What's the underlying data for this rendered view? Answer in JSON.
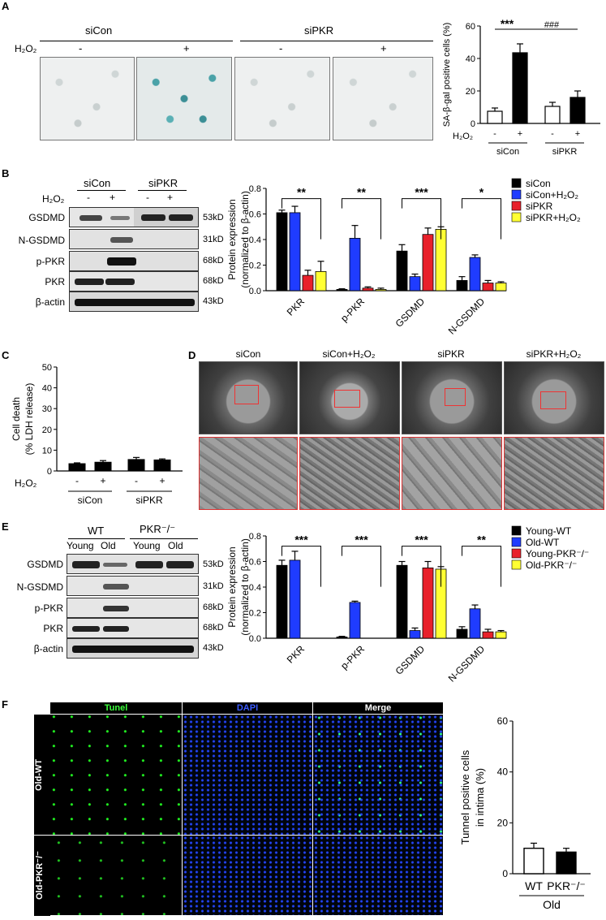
{
  "panels": {
    "A": "A",
    "B": "B",
    "C": "C",
    "D": "D",
    "E": "E",
    "F": "F"
  },
  "panelA": {
    "groups": [
      "siCon",
      "siPKR"
    ],
    "treatment_label": "H₂O₂",
    "signs": [
      "-",
      "+",
      "-",
      "+"
    ],
    "sig_left": "***",
    "sig_right": "###"
  },
  "blotB": {
    "groups": [
      "siCon",
      "siPKR"
    ],
    "treatment_label": "H₂O₂",
    "signs": [
      "-",
      "+",
      "-",
      "+"
    ],
    "rows": [
      {
        "label": "GSDMD",
        "kd": "53kD"
      },
      {
        "label": "N-GSDMD",
        "kd": "31kD"
      },
      {
        "label": "p-PKR",
        "kd": "68kD"
      },
      {
        "label": "PKR",
        "kd": "68kD"
      },
      {
        "label": "β-actin",
        "kd": "43kD"
      }
    ]
  },
  "blotE": {
    "groups": [
      "WT",
      "PKR⁻/⁻"
    ],
    "sub_labels": [
      "Young",
      "Old",
      "Young",
      "Old"
    ],
    "rows": [
      {
        "label": "GSDMD",
        "kd": "53kD"
      },
      {
        "label": "N-GSDMD",
        "kd": "31kD"
      },
      {
        "label": "p-PKR",
        "kd": "68kD"
      },
      {
        "label": "PKR",
        "kd": "68kD"
      },
      {
        "label": "β-actin",
        "kd": "43kD"
      }
    ]
  },
  "panelD": {
    "labels": [
      "siCon",
      "siCon+H₂O₂",
      "siPKR",
      "siPKR+H₂O₂"
    ]
  },
  "panelF": {
    "columns": [
      "Tunel",
      "DAPI",
      "Merge"
    ],
    "rows": [
      "Old-WT",
      "Old-PKR⁻/⁻"
    ]
  },
  "chart_data": [
    {
      "id": "A",
      "type": "bar",
      "ylabel": "SA-β-gal positive cells (%)",
      "ylim": [
        0,
        60
      ],
      "yticks": [
        "0",
        "20",
        "40",
        "60"
      ],
      "treatment_label": "H₂O₂",
      "signs": [
        "-",
        "+",
        "-",
        "+"
      ],
      "groups": [
        "siCon",
        "siPKR"
      ],
      "values": [
        7.5,
        43.5,
        10.5,
        16
      ],
      "errors": [
        2,
        5.5,
        2.5,
        4
      ],
      "fills": [
        "#ffffff",
        "#000000",
        "#ffffff",
        "#000000"
      ],
      "sig": [
        "***",
        "###"
      ]
    },
    {
      "id": "B",
      "type": "bar",
      "ylabel": "Protein expression (normalized to β-actin)",
      "ylim": [
        0,
        0.8
      ],
      "yticks": [
        "0.0",
        "0.2",
        "0.4",
        "0.6",
        "0.8"
      ],
      "categories": [
        "PKR",
        "p-PKR",
        "GSDMD",
        "N-GSDMD"
      ],
      "series": [
        {
          "name": "siCon",
          "color": "#000000",
          "values": [
            0.61,
            0.01,
            0.31,
            0.08
          ],
          "errors": [
            0.02,
            0.005,
            0.05,
            0.03
          ]
        },
        {
          "name": "siCon+H₂O₂",
          "color": "#1f3cff",
          "values": [
            0.61,
            0.41,
            0.11,
            0.26
          ],
          "errors": [
            0.05,
            0.1,
            0.02,
            0.02
          ]
        },
        {
          "name": "siPKR",
          "color": "#e8202a",
          "values": [
            0.12,
            0.02,
            0.44,
            0.06
          ],
          "errors": [
            0.04,
            0.01,
            0.05,
            0.02
          ]
        },
        {
          "name": "siPKR+H₂O₂",
          "color": "#ffff33",
          "values": [
            0.15,
            0.01,
            0.48,
            0.06
          ],
          "errors": [
            0.08,
            0.01,
            0.02,
            0.01
          ]
        }
      ],
      "sig": [
        "**",
        "**",
        "***",
        "*"
      ]
    },
    {
      "id": "C",
      "type": "bar",
      "ylabel": "Cell death (% LDH release)",
      "ylim": [
        0,
        50
      ],
      "yticks": [
        "0",
        "10",
        "20",
        "30",
        "40",
        "50"
      ],
      "treatment_label": "H₂O₂",
      "signs": [
        "-",
        "+",
        "-",
        "+"
      ],
      "groups": [
        "siCon",
        "siPKR"
      ],
      "values": [
        3.5,
        4.2,
        5.5,
        5.3
      ],
      "errors": [
        0.4,
        0.8,
        1.0,
        0.5
      ],
      "fills": [
        "#000000",
        "#000000",
        "#000000",
        "#000000"
      ]
    },
    {
      "id": "E",
      "type": "bar",
      "ylabel": "Protein expression (normalized to β-actin)",
      "ylim": [
        0,
        0.8
      ],
      "yticks": [
        "0.0",
        "0.2",
        "0.4",
        "0.6",
        "0.8"
      ],
      "categories": [
        "PKR",
        "p-PKR",
        "GSDMD",
        "N-GSDMD"
      ],
      "series": [
        {
          "name": "Young-WT",
          "color": "#000000",
          "values": [
            0.57,
            0.01,
            0.57,
            0.07
          ],
          "errors": [
            0.04,
            0.005,
            0.03,
            0.02
          ]
        },
        {
          "name": "Old-WT",
          "color": "#1f3cff",
          "values": [
            0.61,
            0.28,
            0.06,
            0.23
          ],
          "errors": [
            0.07,
            0.01,
            0.02,
            0.03
          ]
        },
        {
          "name": "Young-PKR⁻/⁻",
          "color": "#e8202a",
          "values": [
            0.0,
            0.0,
            0.55,
            0.05
          ],
          "errors": [
            0,
            0,
            0.05,
            0.02
          ]
        },
        {
          "name": "Old-PKR⁻/⁻",
          "color": "#ffff33",
          "values": [
            0.0,
            0.0,
            0.54,
            0.05
          ],
          "errors": [
            0,
            0,
            0.02,
            0.01
          ]
        }
      ],
      "sig": [
        "***",
        "***",
        "***",
        "**"
      ]
    },
    {
      "id": "F",
      "type": "bar",
      "ylabel": "Tunnel positive cells in intima (%)",
      "ylim": [
        0,
        60
      ],
      "yticks": [
        "0",
        "20",
        "40",
        "60"
      ],
      "categories": [
        "WT",
        "PKR⁻/⁻"
      ],
      "group": "Old",
      "values": [
        10,
        8.5
      ],
      "errors": [
        2,
        1.5
      ],
      "fills": [
        "#ffffff",
        "#000000"
      ]
    }
  ]
}
